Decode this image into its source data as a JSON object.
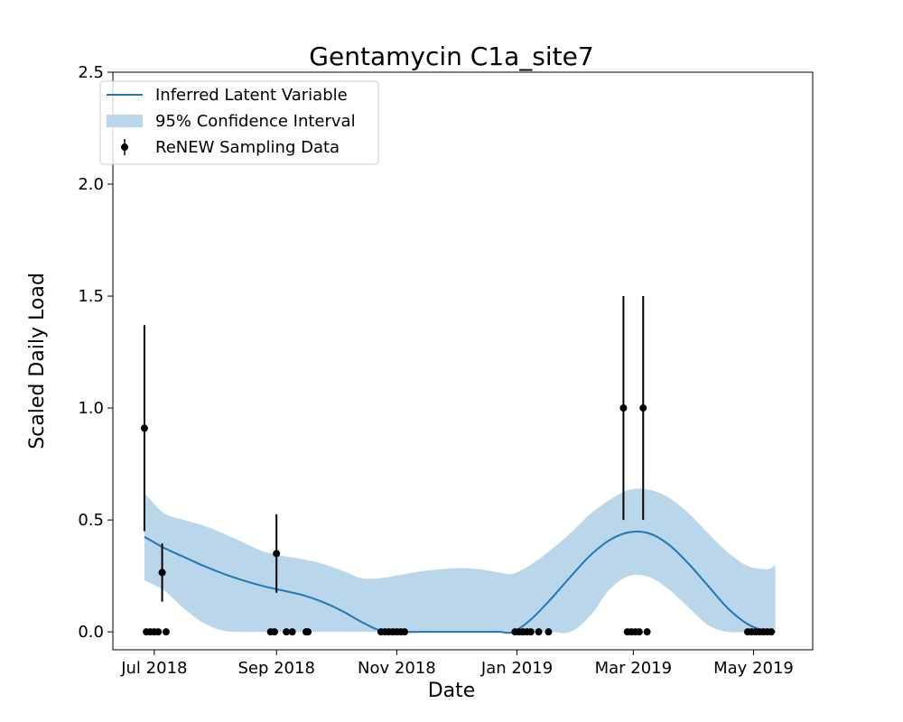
{
  "chart_data": {
    "type": "line",
    "title": "Gentamycin C1a_site7",
    "xlabel": "Date",
    "ylabel": "Scaled Daily Load",
    "ylim": [
      -0.08,
      2.5
    ],
    "xlim": [
      "2018-06-10",
      "2019-05-31"
    ],
    "x_ticks": [
      {
        "date": "2018-07-01",
        "label": "Jul 2018"
      },
      {
        "date": "2018-09-01",
        "label": "Sep 2018"
      },
      {
        "date": "2018-11-01",
        "label": "Nov 2018"
      },
      {
        "date": "2019-01-01",
        "label": "Jan 2019"
      },
      {
        "date": "2019-03-01",
        "label": "Mar 2019"
      },
      {
        "date": "2019-05-01",
        "label": "May 2019"
      }
    ],
    "y_ticks": [
      {
        "value": 0.0,
        "label": "0.0"
      },
      {
        "value": 0.5,
        "label": "0.5"
      },
      {
        "value": 1.0,
        "label": "1.0"
      },
      {
        "value": 1.5,
        "label": "1.5"
      },
      {
        "value": 2.0,
        "label": "2.0"
      },
      {
        "value": 2.5,
        "label": "2.5"
      }
    ],
    "grid": false,
    "legend_placement": "upper-left",
    "legend": [
      {
        "key": "line",
        "label": "Inferred Latent Variable"
      },
      {
        "key": "band",
        "label": "95% Confidence Interval"
      },
      {
        "key": "points",
        "label": "ReNEW Sampling Data"
      }
    ],
    "colors": {
      "line": "#1f77b4",
      "band": "#bad6ea",
      "points": "#000000"
    },
    "latent_variable": {
      "x": [
        "2018-06-26",
        "2018-07-06",
        "2018-07-16",
        "2018-07-26",
        "2018-08-05",
        "2018-08-15",
        "2018-08-25",
        "2018-09-04",
        "2018-09-14",
        "2018-09-24",
        "2018-10-04",
        "2018-10-14",
        "2018-10-24",
        "2018-11-03",
        "2018-11-13",
        "2018-11-23",
        "2018-12-03",
        "2018-12-13",
        "2018-12-23",
        "2018-12-30",
        "2019-01-08",
        "2019-01-18",
        "2019-01-28",
        "2019-02-07",
        "2019-02-17",
        "2019-02-27",
        "2019-03-09",
        "2019-03-19",
        "2019-03-29",
        "2019-04-08",
        "2019-04-18",
        "2019-04-28",
        "2019-05-08",
        "2019-05-12"
      ],
      "y": [
        0.425,
        0.375,
        0.335,
        0.295,
        0.26,
        0.23,
        0.205,
        0.185,
        0.165,
        0.135,
        0.095,
        0.045,
        0.005,
        0.0,
        0.0,
        0.0,
        0.0,
        0.0,
        0.0,
        0.0,
        0.055,
        0.145,
        0.245,
        0.34,
        0.41,
        0.445,
        0.44,
        0.39,
        0.305,
        0.205,
        0.105,
        0.035,
        0.0,
        0.0
      ]
    },
    "confidence_interval": {
      "x": [
        "2018-06-26",
        "2018-07-06",
        "2018-07-16",
        "2018-07-26",
        "2018-08-05",
        "2018-08-15",
        "2018-08-25",
        "2018-09-04",
        "2018-09-14",
        "2018-09-24",
        "2018-10-04",
        "2018-10-14",
        "2018-10-24",
        "2018-11-03",
        "2018-11-13",
        "2018-11-23",
        "2018-12-03",
        "2018-12-13",
        "2018-12-23",
        "2018-12-30",
        "2019-01-08",
        "2019-01-18",
        "2019-01-28",
        "2019-02-07",
        "2019-02-17",
        "2019-02-27",
        "2019-03-09",
        "2019-03-19",
        "2019-03-29",
        "2019-04-08",
        "2019-04-18",
        "2019-04-28",
        "2019-05-08",
        "2019-05-12"
      ],
      "lower": [
        0.23,
        0.185,
        0.105,
        0.04,
        0.005,
        0.0,
        0.0,
        0.0,
        0.0,
        0.0,
        0.0,
        0.0,
        0.0,
        0.0,
        0.0,
        0.0,
        0.0,
        0.0,
        0.0,
        0.0,
        0.0,
        0.0,
        0.0,
        0.07,
        0.19,
        0.25,
        0.245,
        0.19,
        0.11,
        0.03,
        0.0,
        0.0,
        0.0,
        0.0
      ],
      "upper": [
        0.62,
        0.53,
        0.5,
        0.475,
        0.44,
        0.4,
        0.36,
        0.34,
        0.325,
        0.305,
        0.275,
        0.24,
        0.24,
        0.255,
        0.27,
        0.28,
        0.285,
        0.28,
        0.265,
        0.26,
        0.3,
        0.365,
        0.44,
        0.525,
        0.59,
        0.635,
        0.635,
        0.6,
        0.53,
        0.44,
        0.355,
        0.295,
        0.28,
        0.3
      ]
    },
    "sampling_data": [
      {
        "x": "2018-06-26",
        "y": 0.91,
        "err": 0.46
      },
      {
        "x": "2018-06-27",
        "y": 0.0
      },
      {
        "x": "2018-06-29",
        "y": 0.0
      },
      {
        "x": "2018-07-01",
        "y": 0.0
      },
      {
        "x": "2018-07-03",
        "y": 0.0
      },
      {
        "x": "2018-07-05",
        "y": 0.265,
        "err": 0.13
      },
      {
        "x": "2018-07-07",
        "y": 0.0
      },
      {
        "x": "2018-08-29",
        "y": 0.0
      },
      {
        "x": "2018-08-31",
        "y": 0.0
      },
      {
        "x": "2018-09-01",
        "y": 0.35,
        "err": 0.175
      },
      {
        "x": "2018-09-06",
        "y": 0.0
      },
      {
        "x": "2018-09-09",
        "y": 0.0
      },
      {
        "x": "2018-09-16",
        "y": 0.0
      },
      {
        "x": "2018-09-17",
        "y": 0.0
      },
      {
        "x": "2018-10-24",
        "y": 0.0
      },
      {
        "x": "2018-10-26",
        "y": 0.0
      },
      {
        "x": "2018-10-28",
        "y": 0.0
      },
      {
        "x": "2018-10-30",
        "y": 0.0
      },
      {
        "x": "2018-11-01",
        "y": 0.0
      },
      {
        "x": "2018-11-03",
        "y": 0.0
      },
      {
        "x": "2018-11-05",
        "y": 0.0
      },
      {
        "x": "2018-12-31",
        "y": 0.0
      },
      {
        "x": "2019-01-02",
        "y": 0.0
      },
      {
        "x": "2019-01-04",
        "y": 0.0
      },
      {
        "x": "2019-01-06",
        "y": 0.0
      },
      {
        "x": "2019-01-08",
        "y": 0.0
      },
      {
        "x": "2019-01-12",
        "y": 0.0
      },
      {
        "x": "2019-01-17",
        "y": 0.0
      },
      {
        "x": "2019-02-24",
        "y": 1.0,
        "err": 0.5
      },
      {
        "x": "2019-02-26",
        "y": 0.0
      },
      {
        "x": "2019-02-28",
        "y": 0.0
      },
      {
        "x": "2019-03-02",
        "y": 0.0
      },
      {
        "x": "2019-03-04",
        "y": 0.0
      },
      {
        "x": "2019-03-06",
        "y": 1.0,
        "err": 0.5
      },
      {
        "x": "2019-03-08",
        "y": 0.0
      },
      {
        "x": "2019-04-28",
        "y": 0.0
      },
      {
        "x": "2019-04-30",
        "y": 0.0
      },
      {
        "x": "2019-05-02",
        "y": 0.0
      },
      {
        "x": "2019-05-04",
        "y": 0.0
      },
      {
        "x": "2019-05-06",
        "y": 0.0
      },
      {
        "x": "2019-05-08",
        "y": 0.0
      },
      {
        "x": "2019-05-10",
        "y": 0.0
      }
    ]
  }
}
